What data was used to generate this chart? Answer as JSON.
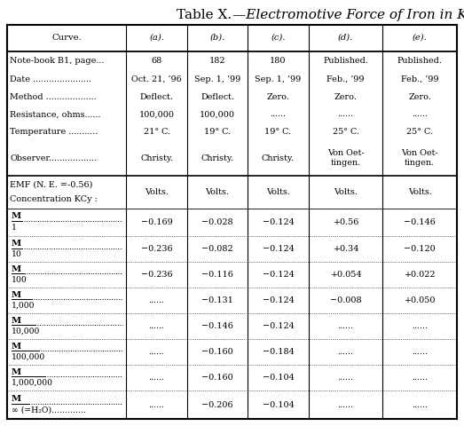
{
  "title_prefix": "Table X.",
  "title_italic": "—Electromotive Force of Iron in KCy.",
  "columns": [
    "Curve.",
    "(a).",
    "(b).",
    "(c).",
    "(d).",
    "(e)."
  ],
  "header_rows": [
    [
      "Note-book B1, page...",
      "68",
      "182",
      "180",
      "Published.",
      "Published."
    ],
    [
      "Date ......................",
      "Oct. 21, ’96",
      "Sep. 1, ’99",
      "Sep. 1, ’99",
      "Feb., ’99",
      "Feb., ’99"
    ],
    [
      "Method ...................",
      "Deflect.",
      "Deflect.",
      "Zero.",
      "Zero.",
      "Zero."
    ],
    [
      "Resistance, ohms......",
      "100,000",
      "100,000",
      "......",
      "......",
      "......"
    ],
    [
      "Temperature ...........",
      "21° C.",
      "19° C.",
      "19° C.",
      "25° C.",
      "25° C."
    ],
    [
      "Observer..................",
      "Christy.",
      "Christy.",
      "Christy.",
      "Von Oet-\ntingen.",
      "Von Oet-\ntingen."
    ]
  ],
  "emf_line1": "EMF (N. E. =-0.56)",
  "emf_line2": "Concentration KCy :",
  "volts": "Volts.",
  "data_rows": [
    [
      "M",
      "1",
      "−0.169",
      "−0.028",
      "−0.124",
      "+0.56",
      "−0.146"
    ],
    [
      "M",
      "10",
      "−0.236",
      "−0.082",
      "−0.124",
      "+0.34",
      "−0.120"
    ],
    [
      "M",
      "100",
      "−0.236",
      "−0.116",
      "−0.124",
      "+0.054",
      "+0.022"
    ],
    [
      "M",
      "1,000",
      "......",
      "−0.131",
      "−0.124",
      "−0.008",
      "+0.050"
    ],
    [
      "M",
      "10,000",
      "......",
      "−0.146",
      "−0.124",
      "......",
      "......"
    ],
    [
      "M",
      "100,000",
      "......",
      "−0.160",
      "−0.184",
      "......",
      "......"
    ],
    [
      "M",
      "1,000,000",
      "......",
      "−0.160",
      "−0.104",
      "......",
      "......"
    ],
    [
      "M",
      "∞ (=H₂O).............",
      "......",
      "−0.206",
      "−0.104",
      "......",
      "......"
    ]
  ],
  "bg_color": "#ffffff"
}
